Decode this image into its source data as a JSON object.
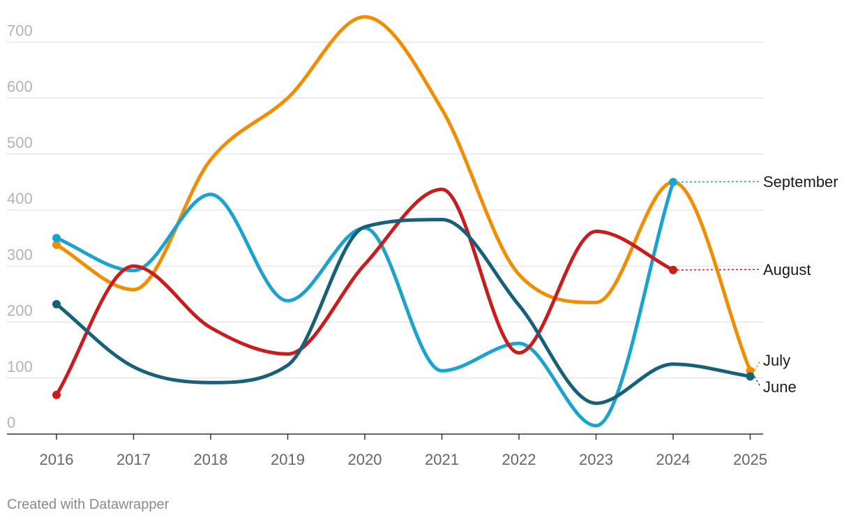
{
  "chart_data": {
    "type": "line",
    "x": [
      "2016",
      "2017",
      "2018",
      "2019",
      "2020",
      "2021",
      "2022",
      "2023",
      "2024",
      "2025"
    ],
    "yticks": [
      0,
      100,
      200,
      300,
      400,
      500,
      600,
      700
    ],
    "ylim": [
      0,
      700
    ],
    "grid": true,
    "legend": "direct labels at right end of lines",
    "series": [
      {
        "name": "July",
        "color": "#f28c00",
        "values": [
          338,
          258,
          490,
          600,
          745,
          580,
          285,
          235,
          450,
          113
        ]
      },
      {
        "name": "September",
        "color": "#1ba3cf",
        "values": [
          350,
          292,
          428,
          238,
          368,
          113,
          162,
          15,
          450,
          null
        ]
      },
      {
        "name": "August",
        "color": "#c91c1c",
        "values": [
          70,
          300,
          190,
          143,
          303,
          437,
          145,
          362,
          293,
          null
        ]
      },
      {
        "name": "June",
        "color": "#17607a",
        "values": [
          232,
          120,
          92,
          123,
          370,
          383,
          230,
          55,
          125,
          103
        ]
      }
    ]
  },
  "footer": {
    "credit": "Created with Datawrapper"
  }
}
